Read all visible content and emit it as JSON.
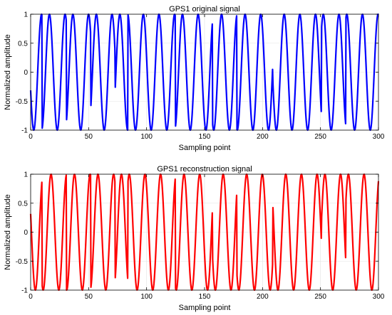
{
  "chart_data": [
    {
      "type": "line",
      "title": "GPS1 original signal",
      "xlabel": "Sampling point",
      "ylabel": "Normalized amplitude",
      "xlim": [
        0,
        300
      ],
      "ylim": [
        -1,
        1
      ],
      "xticks": [
        0,
        50,
        100,
        150,
        200,
        250,
        300
      ],
      "yticks": [
        -1,
        -0.5,
        0,
        0.5,
        1
      ],
      "xtick_labels": [
        "0",
        "50",
        "100",
        "150",
        "200",
        "250",
        "300"
      ],
      "ytick_labels": [
        "-1",
        "-0.5",
        "0",
        "0.5",
        "1"
      ],
      "grid": true,
      "series": [
        {
          "color": "#0000ff",
          "signal": {
            "form": "cosine",
            "amplitude": 1,
            "period_samples": 13.5,
            "phase_rad": 1.89,
            "sign_flips_at": [
              10,
              31,
              52,
              73,
              84,
              125,
              157,
              178,
              209,
              251,
              272
            ]
          },
          "x": [
            0,
            300
          ]
        }
      ]
    },
    {
      "type": "line",
      "title": "GPS1 reconstruction signal",
      "xlabel": "Sampling point",
      "ylabel": "Normalized amplitude",
      "xlim": [
        0,
        300
      ],
      "ylim": [
        -1,
        1
      ],
      "xticks": [
        0,
        50,
        100,
        150,
        200,
        250,
        300
      ],
      "yticks": [
        -1,
        -0.5,
        0,
        0.5,
        1
      ],
      "xtick_labels": [
        "0",
        "50",
        "100",
        "150",
        "200",
        "250",
        "300"
      ],
      "ytick_labels": [
        "-1",
        "-0.5",
        "0",
        "0.5",
        "1"
      ],
      "grid": true,
      "series": [
        {
          "color": "#ff0000",
          "signal": {
            "form": "cosine",
            "amplitude": 1,
            "period_samples": 13.5,
            "phase_rad": 1.25,
            "sign_flips_at": [
              10,
              31,
              52,
              73,
              84,
              125,
              157,
              178,
              209,
              251,
              272
            ]
          },
          "x": [
            0,
            300
          ]
        }
      ]
    }
  ]
}
